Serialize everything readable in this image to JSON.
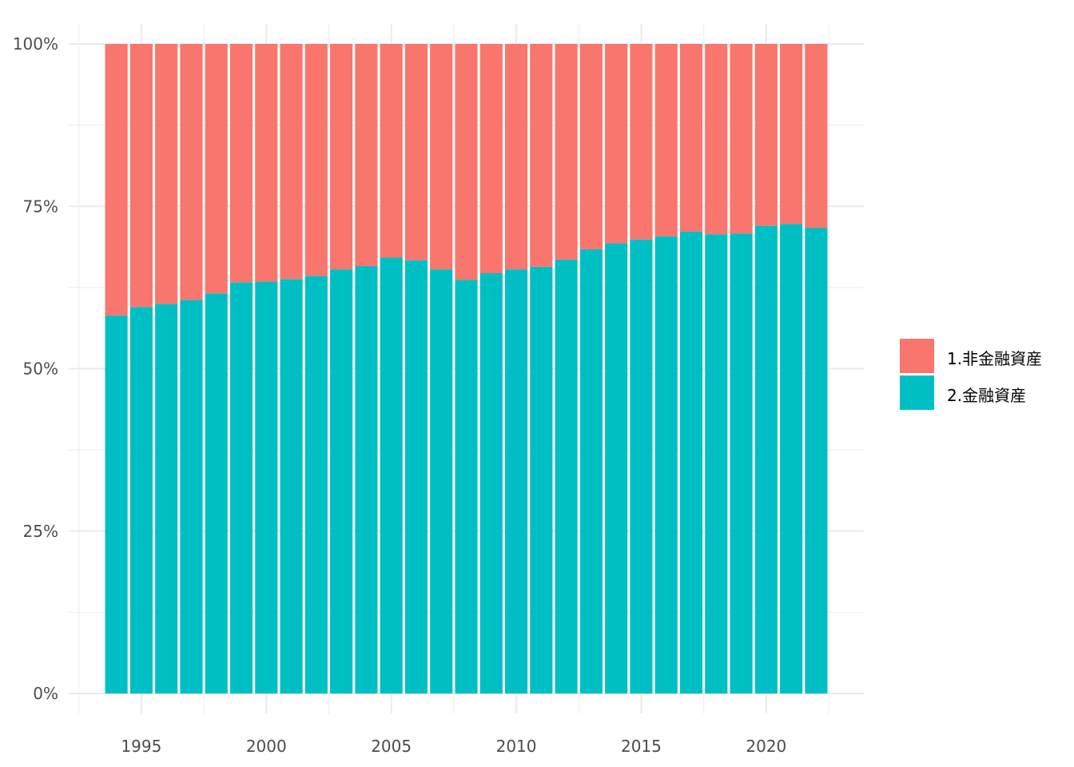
{
  "chart_data": {
    "type": "bar",
    "stacked": "percent",
    "x": [
      1994,
      1995,
      1996,
      1997,
      1998,
      1999,
      2000,
      2001,
      2002,
      2003,
      2004,
      2005,
      2006,
      2007,
      2008,
      2009,
      2010,
      2011,
      2012,
      2013,
      2014,
      2015,
      2016,
      2017,
      2018,
      2019,
      2020,
      2021,
      2022
    ],
    "series": [
      {
        "name": "2.金融資産",
        "color": "#00BFC4",
        "values": [
          58.2,
          59.5,
          60.0,
          60.6,
          61.6,
          63.3,
          63.4,
          63.8,
          64.3,
          65.3,
          65.8,
          67.1,
          66.7,
          65.3,
          63.7,
          64.7,
          65.3,
          65.7,
          66.8,
          68.4,
          69.3,
          69.9,
          70.4,
          71.1,
          70.7,
          70.8,
          72.0,
          72.3,
          71.7
        ]
      },
      {
        "name": "1.非金融資産",
        "color": "#F8766D",
        "values": [
          41.8,
          40.5,
          40.0,
          39.4,
          38.4,
          36.7,
          36.6,
          36.2,
          35.7,
          34.7,
          34.2,
          32.9,
          33.3,
          34.7,
          36.3,
          35.3,
          34.7,
          34.3,
          33.2,
          31.6,
          30.7,
          30.1,
          29.6,
          28.9,
          29.3,
          29.2,
          28.0,
          27.7,
          28.3
        ]
      }
    ],
    "title": "",
    "xlabel": "",
    "ylabel": "",
    "ylim": [
      0,
      100
    ],
    "x_ticks": [
      1995,
      2000,
      2005,
      2010,
      2015,
      2020
    ],
    "x_tick_labels": [
      "1995",
      "2000",
      "2005",
      "2010",
      "2015",
      "2020"
    ],
    "y_ticks": [
      0,
      25,
      50,
      75,
      100
    ],
    "y_tick_labels": [
      "0%",
      "25%",
      "50%",
      "75%",
      "100%"
    ],
    "legend": {
      "placement": "right",
      "entries": [
        {
          "label": "1.非金融資産",
          "color": "#F8766D"
        },
        {
          "label": "2.金融資産",
          "color": "#00BFC4"
        }
      ]
    },
    "grid": true,
    "background": "#FFFFFF",
    "grid_color": "#EBEBEB"
  }
}
